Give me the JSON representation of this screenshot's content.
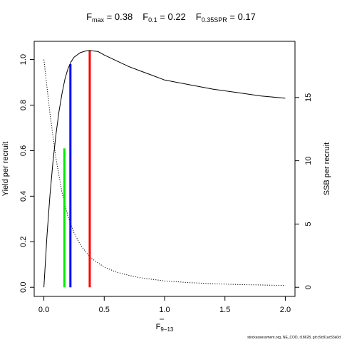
{
  "title": {
    "fmax_main": "F",
    "fmax_sub": "max",
    "fmax_value": " = 0.38",
    "f01_main": "F",
    "f01_sub": "0.1",
    "f01_value": " = 0.22",
    "fspr_main": "F",
    "fspr_sub": "0.35SPR",
    "fspr_value": " = 0.17"
  },
  "footer": "stockassessment.org, NE_COD, r18628, git:c9c81ac53a0d",
  "chart_data": {
    "type": "line",
    "xlabel_main": "F",
    "xlabel_sub": "9−13",
    "ylabel_left": "Yield per recruit",
    "ylabel_right": "SSB per recruit",
    "xlim": [
      -0.08,
      2.08
    ],
    "ylim_left": [
      -0.04,
      1.08
    ],
    "ylim_right": [
      -0.72,
      19.44
    ],
    "x_ticks": [
      0.0,
      0.5,
      1.0,
      1.5,
      2.0
    ],
    "x_tick_labels": [
      "0.0",
      "0.5",
      "1.0",
      "1.5",
      "2.0"
    ],
    "y_left_ticks": [
      0.0,
      0.2,
      0.4,
      0.6,
      0.8,
      1.0
    ],
    "y_left_tick_labels": [
      "0.0",
      "0.2",
      "0.4",
      "0.6",
      "0.8",
      "1.0"
    ],
    "y_right_ticks": [
      0,
      5,
      10,
      15
    ],
    "y_right_tick_labels": [
      "0",
      "5",
      "10",
      "15"
    ],
    "grid": false,
    "series": [
      {
        "role": "yield",
        "axis": "left",
        "style": "solid",
        "color": "#000000",
        "x": [
          0.0,
          0.025,
          0.05,
          0.075,
          0.1,
          0.125,
          0.15,
          0.175,
          0.2,
          0.225,
          0.25,
          0.3,
          0.35,
          0.38,
          0.45,
          0.5,
          0.6,
          0.7,
          0.8,
          0.9,
          1.0,
          1.2,
          1.4,
          1.6,
          1.8,
          2.0
        ],
        "y": [
          0.0,
          0.22,
          0.4,
          0.55,
          0.67,
          0.77,
          0.85,
          0.915,
          0.96,
          0.99,
          1.01,
          1.03,
          1.038,
          1.04,
          1.035,
          1.02,
          0.995,
          0.97,
          0.95,
          0.93,
          0.91,
          0.89,
          0.87,
          0.855,
          0.84,
          0.83
        ]
      },
      {
        "role": "ssb",
        "axis": "right",
        "style": "dotted",
        "color": "#000000",
        "x": [
          0.0,
          0.05,
          0.1,
          0.15,
          0.2,
          0.25,
          0.3,
          0.35,
          0.4,
          0.5,
          0.6,
          0.7,
          0.8,
          1.0,
          1.2,
          1.4,
          1.6,
          1.8,
          2.0
        ],
        "y": [
          18.0,
          13.8,
          10.2,
          7.5,
          5.6,
          4.3,
          3.4,
          2.75,
          2.25,
          1.6,
          1.2,
          0.95,
          0.75,
          0.5,
          0.37,
          0.28,
          0.22,
          0.18,
          0.15
        ]
      }
    ],
    "reference_lines": [
      {
        "name": "F0.35SPR",
        "x": 0.17,
        "y_top": 0.61,
        "color": "#00ee00"
      },
      {
        "name": "F0.1",
        "x": 0.22,
        "y_top": 0.98,
        "color": "#0000ff"
      },
      {
        "name": "Fmax",
        "x": 0.38,
        "y_top": 1.04,
        "color": "#ff0000"
      }
    ]
  }
}
